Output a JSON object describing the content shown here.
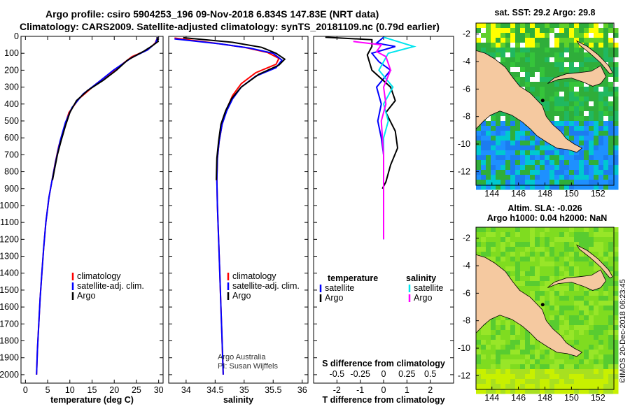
{
  "title": {
    "line1": "Argo profile: csiro 5904253_196 09-Nov-2018 6.834S 147.83E (NRT data)",
    "line2": "Climatology: CARS2009. Satellite-adjusted climatology: synTS_20181109.nc (0.79d earlier)"
  },
  "colors": {
    "climatology": "#ff0000",
    "satellite": "#0000ff",
    "argo": "#000000",
    "sat_salinity": "#00e5ee",
    "argo_salinity": "#ff00ff",
    "land": "#f5c9a0",
    "ocean_sst": "#2fae3a",
    "ocean_sla": "#7fdc20"
  },
  "chart_data": [
    {
      "type": "line",
      "name": "temperature-profile",
      "xlabel": "temperature (deg C)",
      "ylabel": "depth",
      "xlim": [
        -1,
        31
      ],
      "ylim": [
        2050,
        0
      ],
      "xticks": [
        0,
        5,
        10,
        15,
        20,
        25,
        30
      ],
      "xtick_labels": [
        "0",
        "5",
        "10",
        "15",
        "20",
        "25",
        "30"
      ],
      "yticks": [
        0,
        100,
        200,
        300,
        400,
        500,
        600,
        700,
        800,
        900,
        1000,
        1100,
        1200,
        1300,
        1400,
        1500,
        1600,
        1700,
        1800,
        1900,
        2000
      ],
      "ytick_labels": [
        "0",
        "100",
        "200",
        "300",
        "400",
        "500",
        "600",
        "700",
        "800",
        "900",
        "1000",
        "1100",
        "1200",
        "1300",
        "1400",
        "1500",
        "1600",
        "1700",
        "1800",
        "1900",
        "2000"
      ],
      "legend": [
        "climatology",
        "satellite-adj. clim.",
        "Argo"
      ],
      "series": [
        {
          "name": "climatology",
          "points": [
            [
              29.8,
              5
            ],
            [
              29.2,
              40
            ],
            [
              27.5,
              80
            ],
            [
              24,
              120
            ],
            [
              20,
              200
            ],
            [
              16,
              280
            ],
            [
              12,
              370
            ],
            [
              9.8,
              450
            ],
            [
              8.6,
              550
            ],
            [
              7.5,
              650
            ],
            [
              6.7,
              750
            ],
            [
              6,
              850
            ],
            [
              5.3,
              950
            ],
            [
              4.6,
              1100
            ],
            [
              4.1,
              1250
            ],
            [
              3.7,
              1400
            ],
            [
              3.3,
              1550
            ],
            [
              3,
              1700
            ],
            [
              2.7,
              1850
            ],
            [
              2.5,
              2000
            ]
          ]
        },
        {
          "name": "satellite-adj. clim.",
          "points": [
            [
              29.8,
              5
            ],
            [
              29.3,
              40
            ],
            [
              27.5,
              80
            ],
            [
              24,
              125
            ],
            [
              19.8,
              200
            ],
            [
              16.5,
              270
            ],
            [
              13,
              340
            ],
            [
              10.5,
              420
            ],
            [
              9,
              510
            ],
            [
              7.8,
              620
            ],
            [
              6.8,
              740
            ],
            [
              6,
              850
            ],
            [
              5.3,
              950
            ],
            [
              4.6,
              1100
            ],
            [
              4.1,
              1250
            ],
            [
              3.7,
              1400
            ],
            [
              3.3,
              1550
            ],
            [
              3,
              1700
            ],
            [
              2.7,
              1850
            ],
            [
              2.5,
              2000
            ]
          ]
        },
        {
          "name": "Argo",
          "points": [
            [
              29.6,
              5
            ],
            [
              29.9,
              30
            ],
            [
              28.6,
              55
            ],
            [
              26.5,
              90
            ],
            [
              23,
              140
            ],
            [
              20.5,
              200
            ],
            [
              17.5,
              260
            ],
            [
              14,
              320
            ],
            [
              11.5,
              380
            ],
            [
              10,
              450
            ],
            [
              9,
              530
            ],
            [
              8,
              620
            ],
            [
              7.2,
              700
            ],
            [
              6.6,
              780
            ],
            [
              6.1,
              850
            ]
          ]
        }
      ]
    },
    {
      "type": "line",
      "name": "salinity-profile",
      "xlabel": "salinity",
      "xlim": [
        33.7,
        36.1
      ],
      "ylim": [
        2050,
        0
      ],
      "xticks": [
        34,
        34.5,
        35,
        35.5,
        36
      ],
      "xtick_labels": [
        "34",
        "34.5",
        "35",
        "35.5",
        "36"
      ],
      "legend": [
        "climatology",
        "satellite-adj. clim.",
        "Argo"
      ],
      "annotations": [
        "Argo Australia",
        "PI: Susan Wijffels"
      ],
      "series": [
        {
          "name": "climatology",
          "points": [
            [
              33.8,
              10
            ],
            [
              34.5,
              40
            ],
            [
              35,
              65
            ],
            [
              35.4,
              95
            ],
            [
              35.6,
              130
            ],
            [
              35.55,
              165
            ],
            [
              35.2,
              215
            ],
            [
              34.95,
              280
            ],
            [
              34.8,
              350
            ],
            [
              34.7,
              430
            ],
            [
              34.62,
              520
            ],
            [
              34.57,
              620
            ],
            [
              34.54,
              720
            ],
            [
              34.53,
              850
            ],
            [
              34.54,
              1000
            ],
            [
              34.56,
              1200
            ],
            [
              34.58,
              1400
            ],
            [
              34.6,
              1600
            ],
            [
              34.62,
              1800
            ],
            [
              34.64,
              2000
            ]
          ]
        },
        {
          "name": "satellite-adj. clim.",
          "points": [
            [
              33.8,
              15
            ],
            [
              34.6,
              45
            ],
            [
              35.1,
              70
            ],
            [
              35.5,
              100
            ],
            [
              35.65,
              140
            ],
            [
              35.55,
              185
            ],
            [
              35.2,
              235
            ],
            [
              34.95,
              300
            ],
            [
              34.8,
              370
            ],
            [
              34.7,
              440
            ],
            [
              34.62,
              520
            ],
            [
              34.57,
              620
            ],
            [
              34.54,
              720
            ],
            [
              34.53,
              850
            ],
            [
              34.54,
              1000
            ],
            [
              34.56,
              1200
            ],
            [
              34.58,
              1400
            ],
            [
              34.6,
              1600
            ],
            [
              34.62,
              1800
            ],
            [
              34.64,
              2000
            ]
          ]
        },
        {
          "name": "Argo",
          "points": [
            [
              33.95,
              8
            ],
            [
              34.8,
              35
            ],
            [
              35.3,
              65
            ],
            [
              35.55,
              100
            ],
            [
              35.7,
              135
            ],
            [
              35.6,
              170
            ],
            [
              35.25,
              225
            ],
            [
              34.95,
              300
            ],
            [
              34.78,
              370
            ],
            [
              34.68,
              440
            ],
            [
              34.6,
              520
            ],
            [
              34.56,
              620
            ],
            [
              34.53,
              720
            ],
            [
              34.52,
              850
            ]
          ]
        }
      ]
    },
    {
      "type": "line",
      "name": "difference-profile",
      "xlabel": "T difference from climatology",
      "xlabel2": "S difference from climatology",
      "xlim": [
        -3,
        3
      ],
      "ylim": [
        2050,
        0
      ],
      "xticks": [
        -2,
        -1,
        0,
        1,
        2
      ],
      "xtick_labels": [
        "-2",
        "-1",
        "0",
        "1",
        "2"
      ],
      "sticks": [
        -2,
        -1,
        1,
        2
      ],
      "stick_labels": [
        "-0.5",
        "-0.25",
        "0.25",
        "0.5"
      ],
      "legend_left_title": "temperature",
      "legend_right_title": "salinity",
      "legend": [
        "satellite",
        "Argo",
        "satellite",
        "Argo"
      ],
      "series": [
        {
          "name": "T satellite",
          "points": [
            [
              0,
              5
            ],
            [
              -0.3,
              40
            ],
            [
              0.5,
              60
            ],
            [
              -0.5,
              100
            ],
            [
              -0.2,
              150
            ],
            [
              0.3,
              200
            ],
            [
              -0.3,
              300
            ],
            [
              -0.1,
              400
            ],
            [
              -0.25,
              500
            ],
            [
              -0.1,
              600
            ],
            [
              0,
              700
            ],
            [
              0,
              800
            ],
            [
              0,
              900
            ],
            [
              0,
              1000
            ],
            [
              0,
              1100
            ],
            [
              0,
              1200
            ]
          ]
        },
        {
          "name": "T Argo",
          "points": [
            [
              -2.5,
              5
            ],
            [
              -0.5,
              20
            ],
            [
              -0.5,
              60
            ],
            [
              -0.7,
              110
            ],
            [
              -0.5,
              200
            ],
            [
              0.3,
              300
            ],
            [
              0.5,
              380
            ],
            [
              0.1,
              450
            ],
            [
              0.5,
              560
            ],
            [
              0.6,
              660
            ],
            [
              0.3,
              760
            ],
            [
              0.1,
              860
            ],
            [
              -0.05,
              900
            ]
          ]
        },
        {
          "name": "S satellite",
          "points": [
            [
              0,
              5
            ],
            [
              1.3,
              60
            ],
            [
              0.2,
              100
            ],
            [
              -0.2,
              200
            ],
            [
              0.4,
              300
            ],
            [
              0,
              400
            ],
            [
              0.2,
              500
            ],
            [
              0,
              600
            ],
            [
              0,
              800
            ],
            [
              0,
              1000
            ],
            [
              0,
              1200
            ]
          ]
        },
        {
          "name": "S Argo",
          "points": [
            [
              -1.3,
              30
            ],
            [
              -0.1,
              50
            ],
            [
              -0.3,
              90
            ],
            [
              0.1,
              120
            ],
            [
              0.3,
              200
            ],
            [
              0,
              300
            ],
            [
              0.1,
              400
            ],
            [
              -0.1,
              500
            ],
            [
              0,
              700
            ],
            [
              0,
              900
            ],
            [
              0,
              1100
            ],
            [
              0,
              1200
            ]
          ]
        }
      ]
    },
    {
      "type": "heatmap",
      "name": "sst-map",
      "title": "sat. SST: 29.2 Argo: 29.8",
      "xticks": [
        144,
        146,
        148,
        150,
        152
      ],
      "xtick_labels": [
        "144",
        "146",
        "148",
        "150",
        "152"
      ],
      "yticks": [
        -2,
        -4,
        -6,
        -8,
        -10,
        -12
      ],
      "ytick_labels": [
        "-2",
        "-4",
        "-6",
        "-8",
        "-10",
        "-12"
      ],
      "xlim": [
        142.8,
        153.2
      ],
      "ylim": [
        -13,
        -1.2
      ],
      "profile_location": [
        147.83,
        -6.834
      ]
    },
    {
      "type": "heatmap",
      "name": "sla-map",
      "title": "Altim. SLA: -0.026",
      "subtitle": "Argo h1000: 0.04 h2000: NaN",
      "xticks": [
        144,
        146,
        148,
        150,
        152
      ],
      "xtick_labels": [
        "144",
        "146",
        "148",
        "150",
        "152"
      ],
      "yticks": [
        -2,
        -4,
        -6,
        -8,
        -10,
        -12
      ],
      "ytick_labels": [
        "-2",
        "-4",
        "-6",
        "-8",
        "-10",
        "-12"
      ],
      "xlim": [
        142.8,
        153.2
      ],
      "ylim": [
        -13,
        -1.2
      ],
      "profile_location": [
        147.83,
        -6.834
      ]
    }
  ],
  "credit": "©IMOS 20-Dec-2018 06:23:45"
}
